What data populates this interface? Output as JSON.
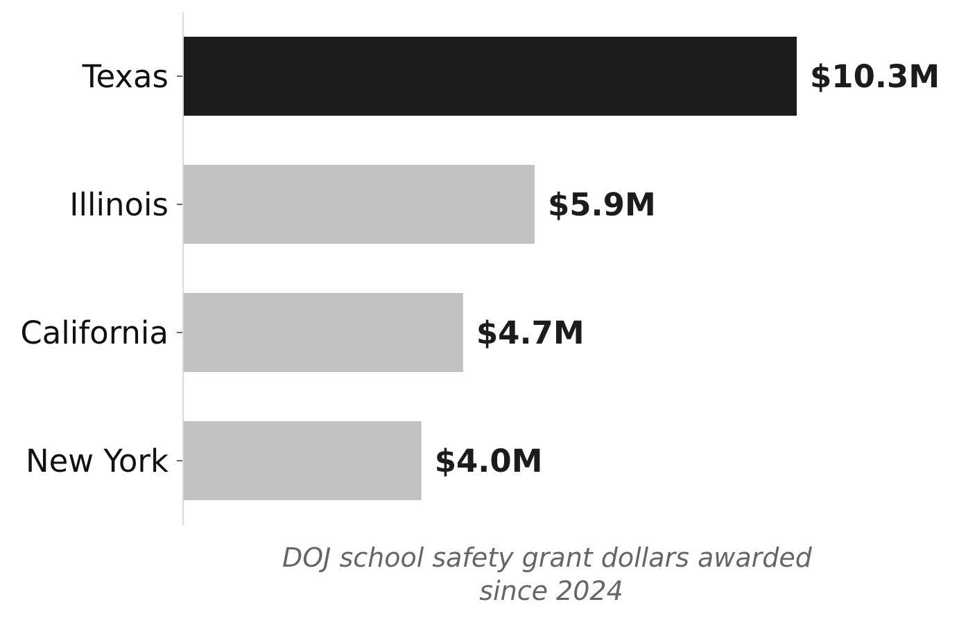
{
  "chart_data": {
    "type": "bar",
    "orientation": "horizontal",
    "categories": [
      "Texas",
      "Illinois",
      "California",
      "New York"
    ],
    "values": [
      10.3,
      5.9,
      4.7,
      4.0
    ],
    "value_labels": [
      "$10.3M",
      "$5.9M",
      "$4.7M",
      "$4.0M"
    ],
    "xlabel_lines": [
      "DOJ school safety grant dollars awarded",
      "since 2024"
    ],
    "ylabel": "",
    "title": "",
    "xlim": [
      0,
      12
    ],
    "grid": false,
    "legend": "none",
    "colors": {
      "highlight": "#1c1c1c",
      "default": "#c2c2c2",
      "axis": "#d9d9d9",
      "tick": "#333333"
    },
    "highlight_index": 0
  }
}
